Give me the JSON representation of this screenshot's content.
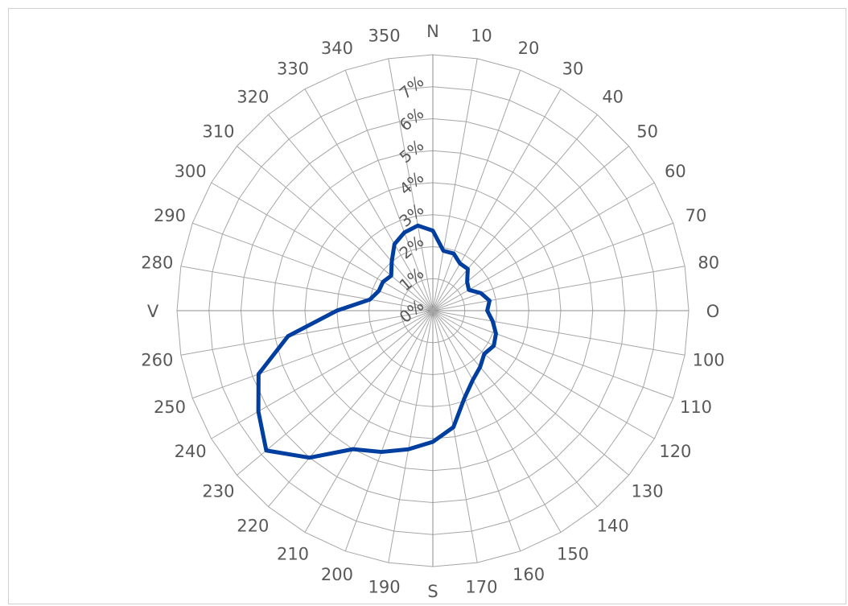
{
  "chart_data": {
    "type": "radar",
    "title": "",
    "categories": [
      "N",
      "10",
      "20",
      "30",
      "40",
      "50",
      "60",
      "70",
      "80",
      "O",
      "100",
      "110",
      "120",
      "130",
      "140",
      "150",
      "160",
      "170",
      "S",
      "190",
      "200",
      "210",
      "220",
      "230",
      "240",
      "250",
      "260",
      "V",
      "280",
      "290",
      "300",
      "310",
      "320",
      "330",
      "340",
      "350"
    ],
    "radial_tick_labels": [
      "0%",
      "1%",
      "2%",
      "3%",
      "4%",
      "5%",
      "6%",
      "7%"
    ],
    "rlim": [
      0,
      8
    ],
    "rings_unlabeled_outer": 8,
    "grid": true,
    "series": [
      {
        "color": "#003f9f",
        "values": [
          2.5,
          1.9,
          1.9,
          1.7,
          1.7,
          1.4,
          1.3,
          1.6,
          1.8,
          1.7,
          1.9,
          2.1,
          2.2,
          2.1,
          2.3,
          2.5,
          2.9,
          3.7,
          4.1,
          4.4,
          4.7,
          5.0,
          6.0,
          6.8,
          6.3,
          5.8,
          4.6,
          3.0,
          2.0,
          1.8,
          1.8,
          1.7,
          2.0,
          2.4,
          2.6,
          2.7
        ]
      }
    ]
  }
}
